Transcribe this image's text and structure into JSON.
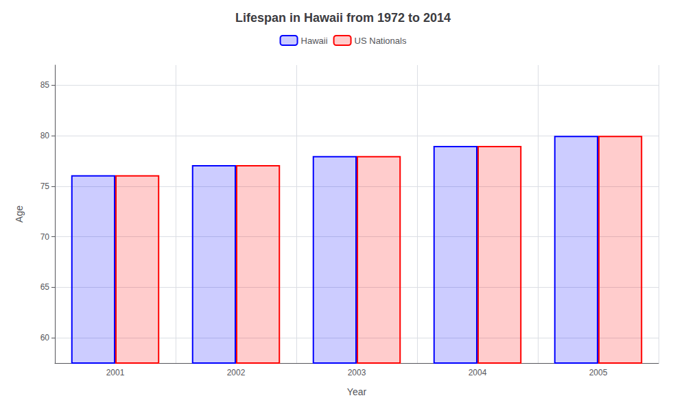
{
  "chart_data": {
    "type": "bar",
    "title": "Lifespan in Hawaii from 1972 to 2014",
    "xlabel": "Year",
    "ylabel": "Age",
    "categories": [
      "2001",
      "2002",
      "2003",
      "2004",
      "2005"
    ],
    "series": [
      {
        "name": "Hawaii",
        "color": "#0000ff",
        "values": [
          76.1,
          77.1,
          78.0,
          79.0,
          80.0
        ]
      },
      {
        "name": "US Nationals",
        "color": "#ff0000",
        "values": [
          76.1,
          77.1,
          78.0,
          79.0,
          80.0
        ]
      }
    ],
    "ylim": [
      57.5,
      87
    ],
    "yticks": [
      60,
      65,
      70,
      75,
      80,
      85
    ],
    "grid": true,
    "legend": "top"
  }
}
